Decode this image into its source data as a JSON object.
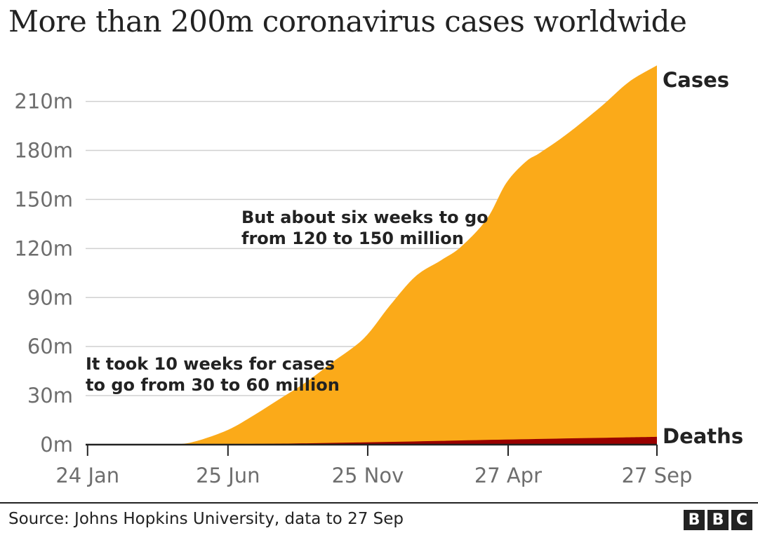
{
  "title": "More than 200m coronavirus cases worldwide",
  "source": "Source: Johns Hopkins University, data to 27 Sep",
  "logo": {
    "letters": [
      "B",
      "B",
      "C"
    ]
  },
  "colors": {
    "cases": "#fbaa19",
    "deaths": "#990000",
    "grid": "#d0d0d0",
    "axis": "#222222"
  },
  "chart_data": {
    "type": "area",
    "title": "More than 200m coronavirus cases worldwide",
    "xlabel": "",
    "ylabel": "",
    "ylim": [
      0,
      230
    ],
    "y_unit": "million",
    "xlim": [
      0,
      88.3
    ],
    "x_unit": "weeks since 22 Jan 2020",
    "yticks": [
      0,
      30,
      60,
      90,
      120,
      150,
      180,
      210
    ],
    "ytick_labels": [
      "0m",
      "30m",
      "60m",
      "90m",
      "120m",
      "150m",
      "180m",
      "210m"
    ],
    "xticks": [
      0.3,
      22,
      43.6,
      65.3,
      88.3
    ],
    "xtick_labels": [
      "24 Jan",
      "25 Jun",
      "25 Nov",
      "27 Apr",
      "27 Sep"
    ],
    "series": [
      {
        "name": "Cases",
        "x": [
          0,
          10,
          14,
          17,
          22,
          26,
          30,
          34,
          38,
          43,
          47,
          51,
          55,
          58,
          62,
          65,
          68,
          70,
          73,
          76,
          80,
          84,
          88.3
        ],
        "values": [
          0,
          0.01,
          0.2,
          2,
          9,
          18,
          28,
          38,
          50,
          65,
          85,
          103,
          113,
          121,
          138,
          160,
          173,
          178,
          186,
          195,
          208,
          222,
          232
        ]
      },
      {
        "name": "Deaths",
        "x": [
          0,
          10,
          14,
          17,
          22,
          30,
          43,
          55,
          65,
          76,
          88.3
        ],
        "values": [
          0,
          0,
          0.02,
          0.1,
          0.3,
          0.6,
          1.4,
          2.3,
          3.1,
          3.9,
          4.75
        ]
      }
    ],
    "annotations": [
      {
        "lines": [
          "But about six weeks to go",
          "from 120 to 150 million"
        ]
      },
      {
        "lines": [
          "It took 10 weeks for cases",
          "to go from 30 to 60 million"
        ]
      }
    ]
  }
}
